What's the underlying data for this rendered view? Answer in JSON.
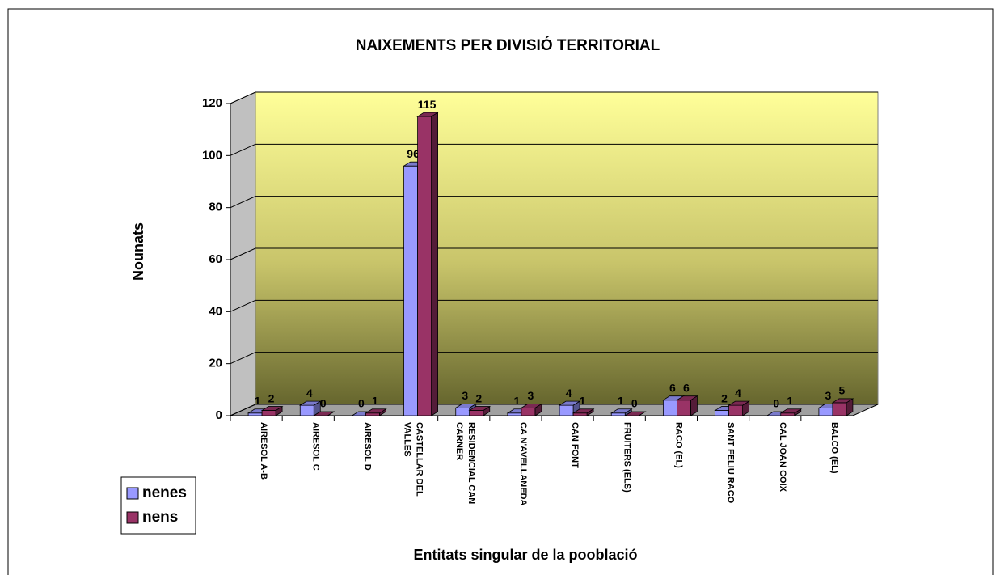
{
  "chart_data": {
    "type": "bar3d",
    "title": "NAIXEMENTS PER DIVISIÓ TERRITORIAL",
    "y_label": "Nounats",
    "x_label": "Entitats singular de la pooblació",
    "categories": [
      "AIRESOL A-B",
      "AIRESOL C",
      "AIRESOL D",
      "CASTELLAR DEL VALLES",
      "RESIDENCIAL CAN CARNER",
      "CA N'AVELLANEDA",
      "CAN FONT",
      "FRUITERS (ELS)",
      "RACO (EL)",
      "SANT FELIU RACO",
      "CAL JOAN COIX",
      "BALCO (EL)"
    ],
    "series": [
      {
        "name": "nenes",
        "color": "#9999ff",
        "values": [
          1,
          4,
          0,
          96,
          3,
          1,
          4,
          1,
          6,
          2,
          0,
          3
        ]
      },
      {
        "name": "nens",
        "color": "#993366",
        "values": [
          2,
          0,
          1,
          115,
          2,
          3,
          1,
          0,
          6,
          4,
          1,
          5
        ]
      }
    ],
    "ylim": [
      0,
      120
    ],
    "yticks": [
      0,
      20,
      40,
      60,
      80,
      100,
      120
    ],
    "grid": true,
    "legend": "bottom-left"
  }
}
